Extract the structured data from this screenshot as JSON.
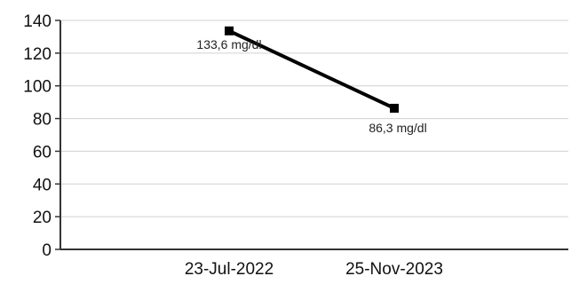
{
  "chart_data": {
    "type": "line",
    "title": "",
    "xlabel": "",
    "ylabel": "",
    "categories": [
      "23-Jul-2022",
      "25-Nov-2023"
    ],
    "series": [
      {
        "values": [
          133.6,
          86.3
        ],
        "data_labels": [
          "133,6 mg/dl",
          "86,3 mg/dl"
        ],
        "color": "#000000",
        "marker": "square"
      }
    ],
    "ylim": [
      0,
      140
    ],
    "yticks": [
      "0",
      "20",
      "40",
      "60",
      "80",
      "100",
      "120",
      "140"
    ],
    "grid": true,
    "legend": "none"
  }
}
